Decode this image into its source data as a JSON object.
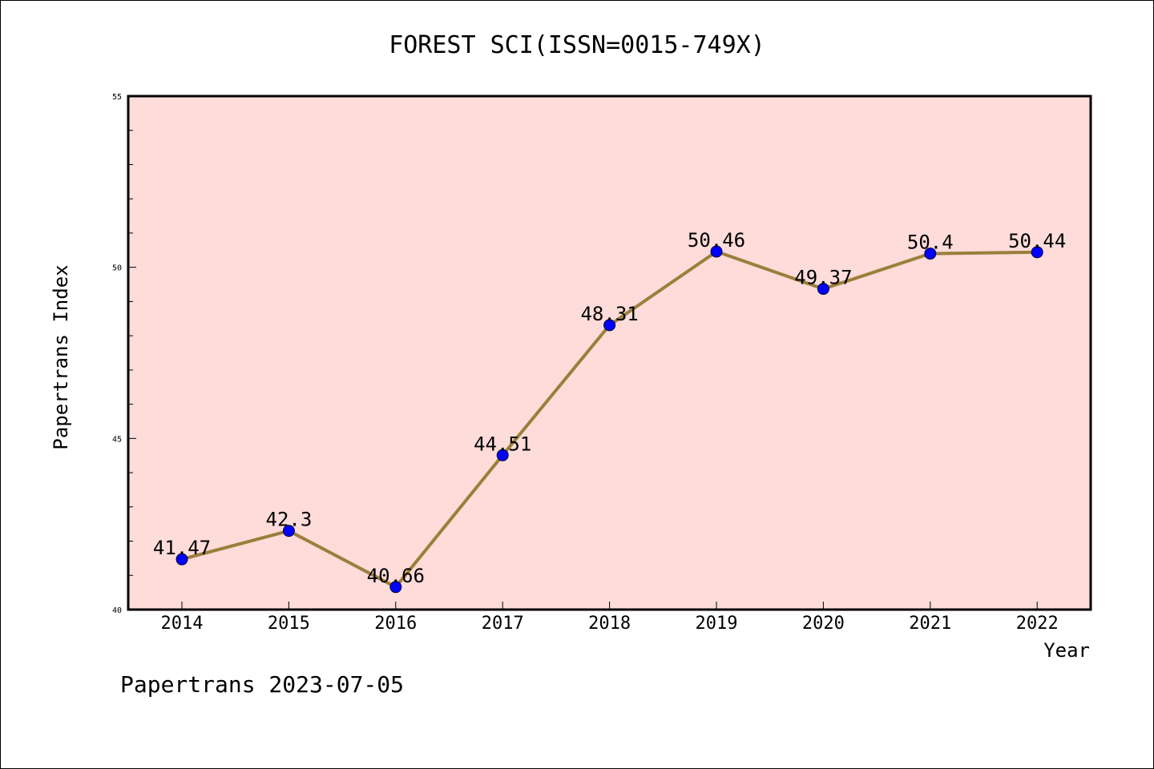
{
  "chart_data": {
    "type": "line",
    "title": "FOREST SCI(ISSN=0015-749X)",
    "xlabel": "Year",
    "ylabel": "Papertrans Index",
    "categories": [
      "2014",
      "2015",
      "2016",
      "2017",
      "2018",
      "2019",
      "2020",
      "2021",
      "2022"
    ],
    "values": [
      41.47,
      42.3,
      40.66,
      44.51,
      48.31,
      50.46,
      49.37,
      50.4,
      50.44
    ],
    "data_labels": [
      "41.47",
      "42.3",
      "40.66",
      "44.51",
      "48.31",
      "50.46",
      "49.37",
      "50.4",
      "50.44"
    ],
    "ylim": [
      40,
      55
    ],
    "y_ticks": [
      40,
      45,
      50,
      55
    ],
    "y_minor_step": 1,
    "grid": false,
    "plot_background": "#FDDCD9",
    "line_color": "#9B7F3A",
    "marker_color": "#0000FF",
    "footer": "Papertrans 2023-07-05"
  }
}
